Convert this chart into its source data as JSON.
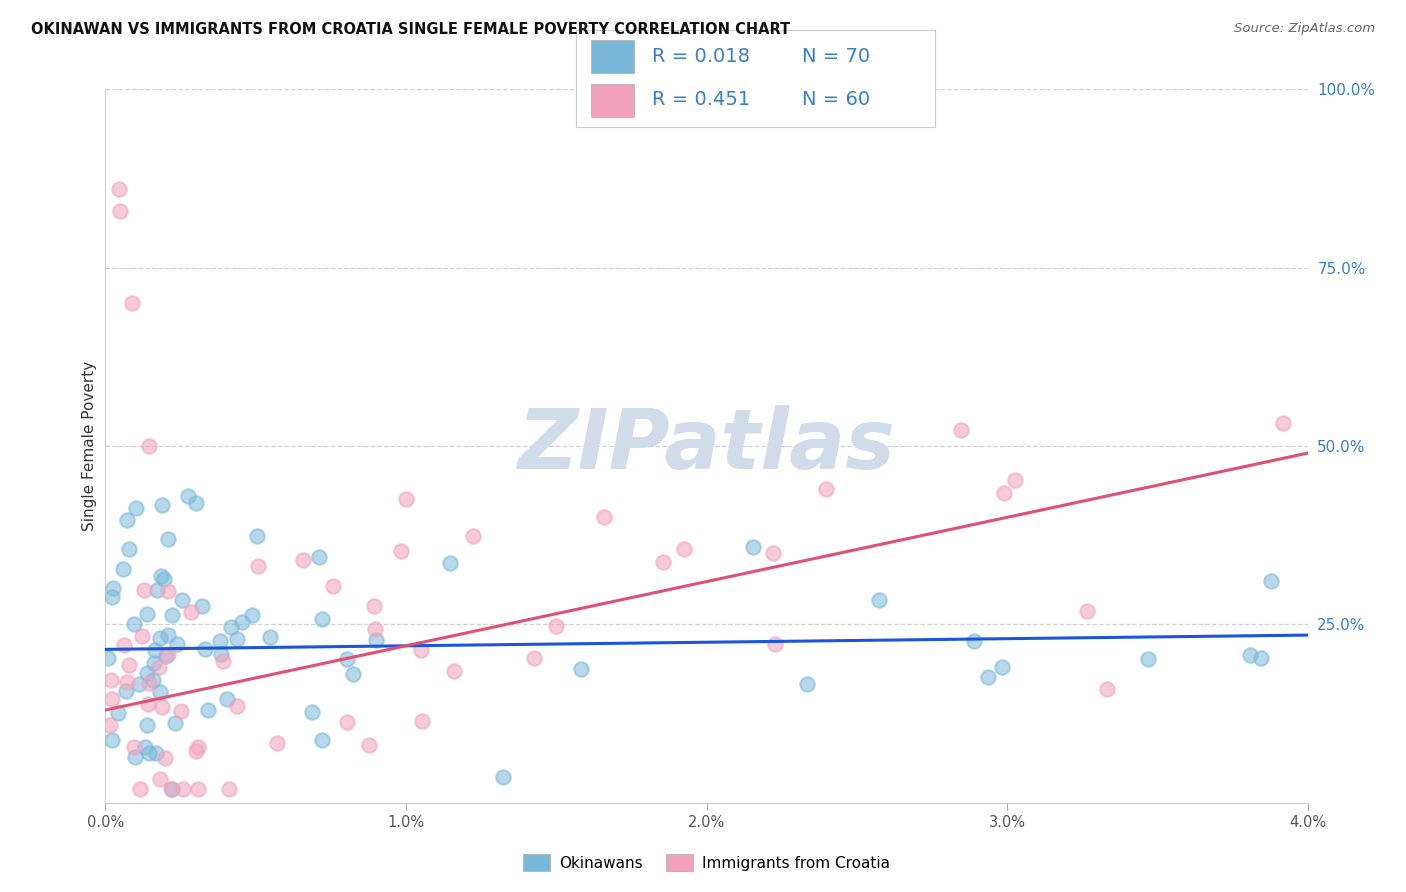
{
  "title": "OKINAWAN VS IMMIGRANTS FROM CROATIA SINGLE FEMALE POVERTY CORRELATION CHART",
  "source": "Source: ZipAtlas.com",
  "ylabel": "Single Female Poverty",
  "right_yticks": [
    "100.0%",
    "75.0%",
    "50.0%",
    "25.0%"
  ],
  "right_ytick_vals": [
    1.0,
    0.75,
    0.5,
    0.25
  ],
  "legend_label1": "Okinawans",
  "legend_label2": "Immigrants from Croatia",
  "R1": 0.018,
  "N1": 70,
  "R2": 0.451,
  "N2": 60,
  "color1": "#7ab8d9",
  "color2": "#f2a0bb",
  "line1_color": "#1a56db",
  "line2_color": "#e05070",
  "dash_color": "#e090a8",
  "watermark_color": "#d0dcea",
  "background_color": "#ffffff",
  "xlim": [
    0.0,
    0.04
  ],
  "ylim": [
    0.0,
    1.0
  ],
  "xticks": [
    0.0,
    0.01,
    0.02,
    0.03,
    0.04
  ],
  "xtick_labels": [
    "0.0%",
    "1.0%",
    "2.0%",
    "3.0%",
    "4.0%"
  ],
  "grid_color": "#cccccc",
  "title_color": "#111111",
  "ylabel_color": "#333333",
  "source_color": "#666666",
  "line1_intercept": 0.215,
  "line1_slope": 0.5,
  "line2_intercept": 0.13,
  "line2_slope": 9.0
}
